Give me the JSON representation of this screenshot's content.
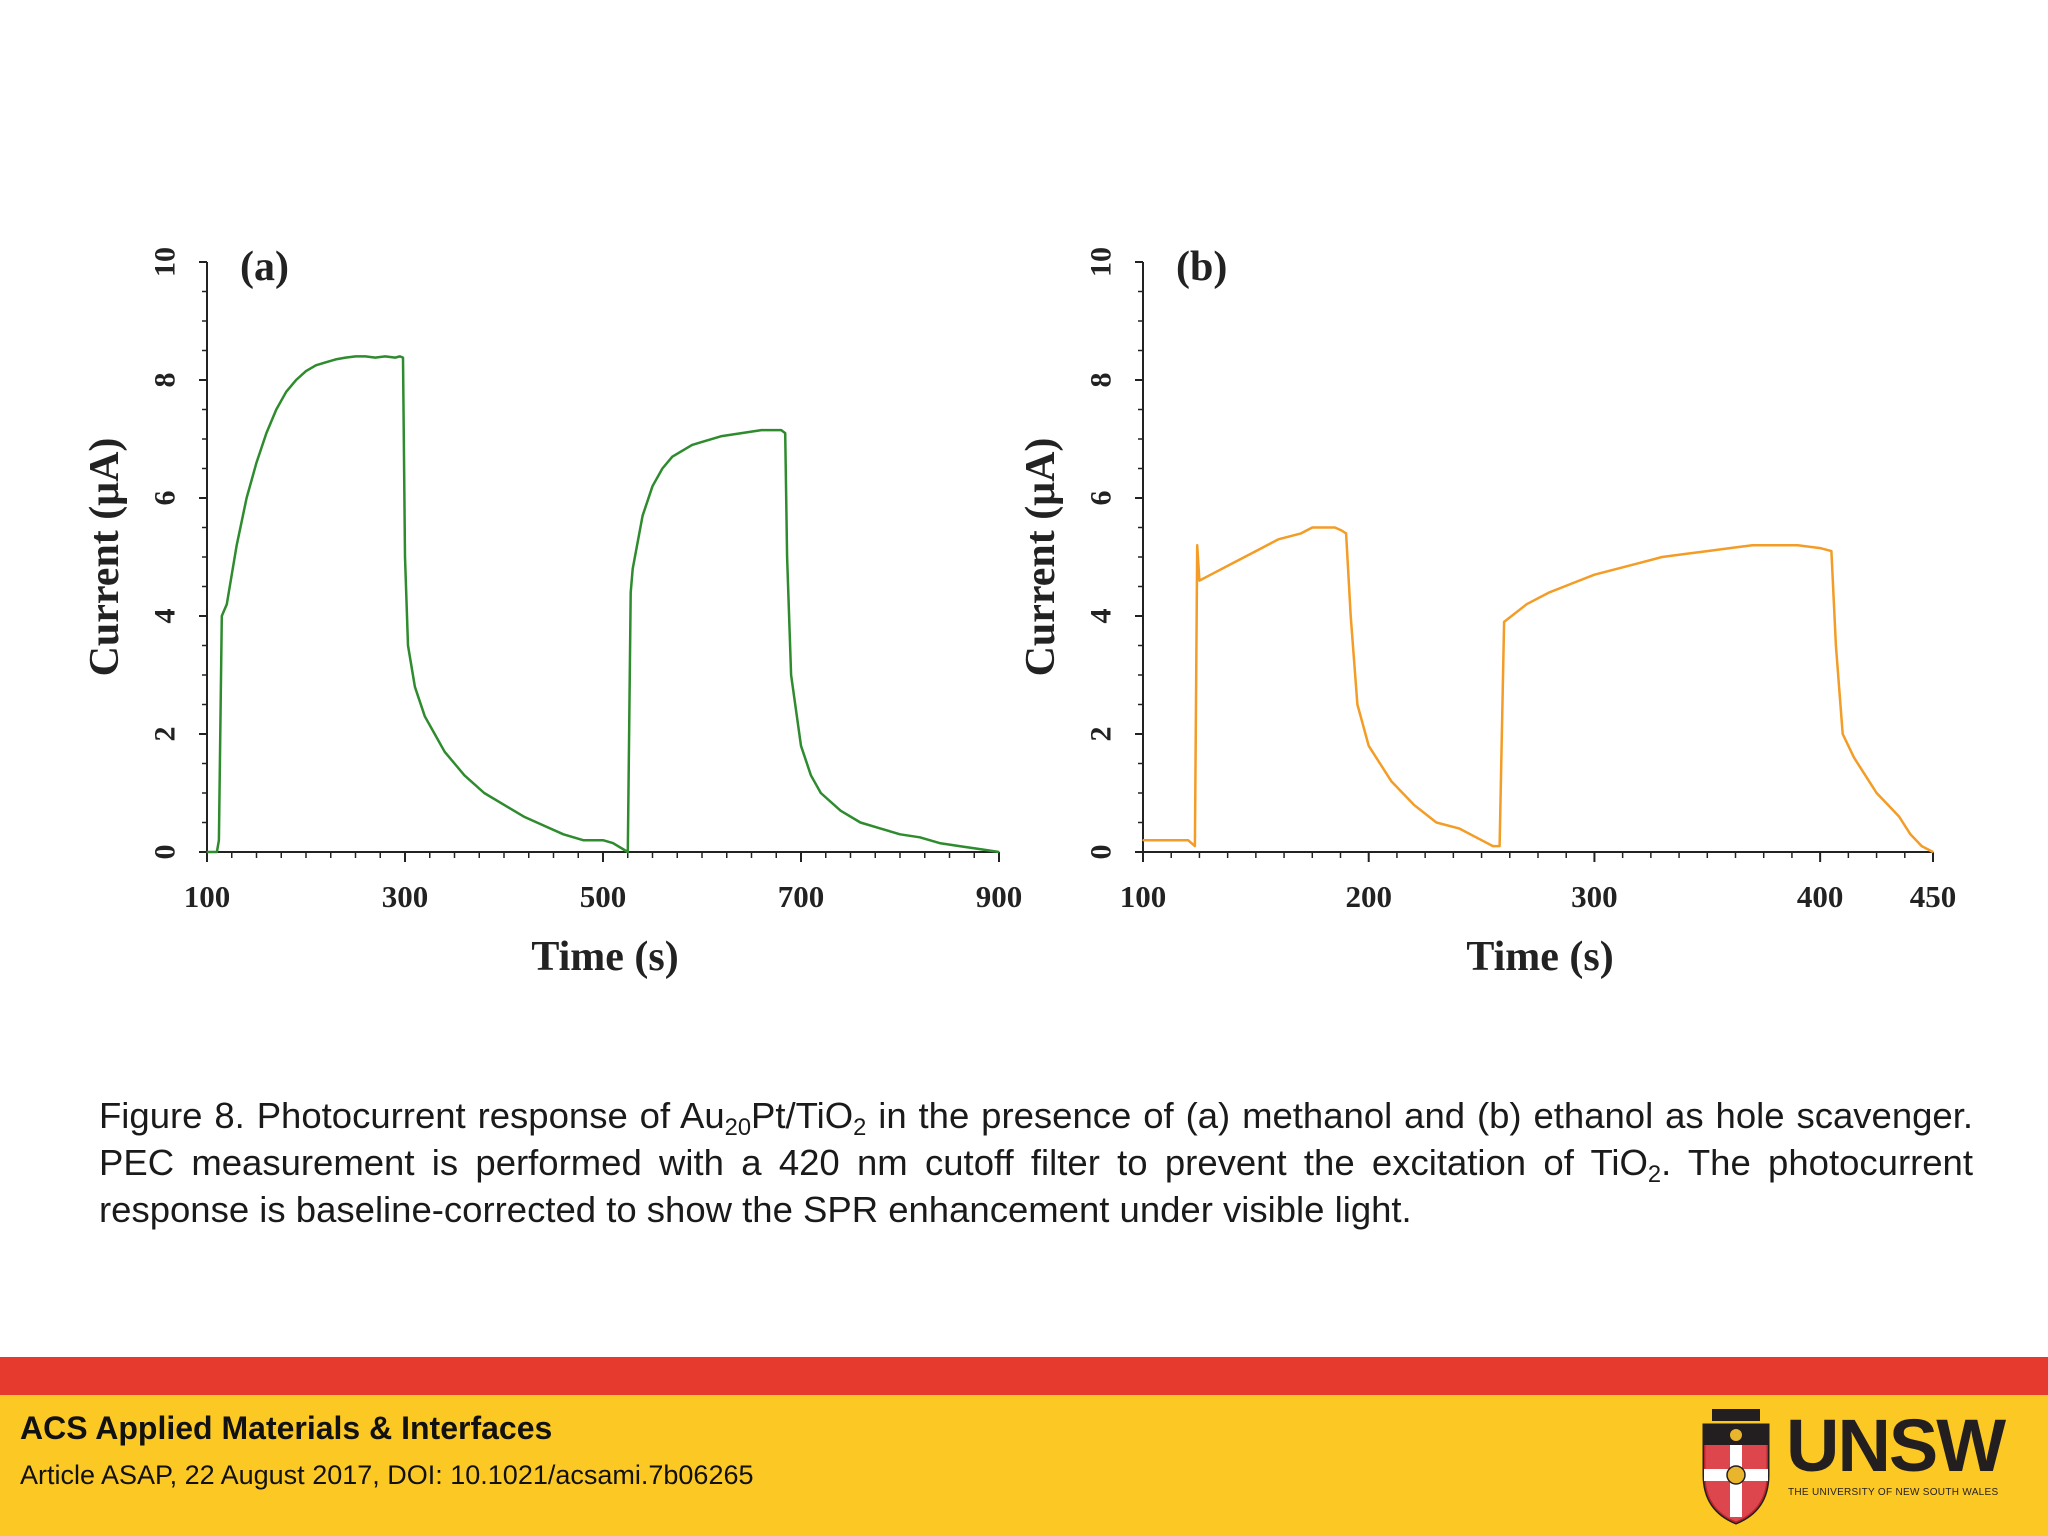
{
  "chart_data": [
    {
      "type": "line",
      "panel_label": "(a)",
      "xlabel": "Time (s)",
      "ylabel": "Current (μA)",
      "xlim": [
        100,
        900
      ],
      "ylim": [
        0,
        10
      ],
      "xticks": [
        "100",
        "300",
        "500",
        "700",
        "900"
      ],
      "yticks": [
        "0",
        "2",
        "4",
        "6",
        "8",
        "10"
      ],
      "color": "#2e8b2e",
      "x": [
        100,
        110,
        112,
        115,
        120,
        130,
        140,
        150,
        160,
        170,
        180,
        190,
        200,
        210,
        220,
        230,
        240,
        250,
        260,
        270,
        280,
        290,
        295,
        298,
        300,
        303,
        310,
        320,
        330,
        340,
        350,
        360,
        380,
        400,
        420,
        440,
        460,
        480,
        500,
        510,
        515,
        520,
        525,
        528,
        530,
        540,
        550,
        560,
        570,
        580,
        590,
        600,
        620,
        640,
        660,
        680,
        684,
        686,
        690,
        700,
        710,
        720,
        740,
        760,
        780,
        800,
        820,
        840,
        860,
        880,
        900
      ],
      "values": [
        0,
        0,
        0.2,
        4.0,
        4.2,
        5.2,
        6.0,
        6.6,
        7.1,
        7.5,
        7.8,
        8.0,
        8.15,
        8.25,
        8.3,
        8.35,
        8.38,
        8.4,
        8.4,
        8.38,
        8.4,
        8.38,
        8.4,
        8.38,
        5.0,
        3.5,
        2.8,
        2.3,
        2.0,
        1.7,
        1.5,
        1.3,
        1.0,
        0.8,
        0.6,
        0.45,
        0.3,
        0.2,
        0.2,
        0.15,
        0.1,
        0.05,
        0,
        4.4,
        4.8,
        5.7,
        6.2,
        6.5,
        6.7,
        6.8,
        6.9,
        6.95,
        7.05,
        7.1,
        7.15,
        7.15,
        7.1,
        5.0,
        3.0,
        1.8,
        1.3,
        1.0,
        0.7,
        0.5,
        0.4,
        0.3,
        0.25,
        0.15,
        0.1,
        0.05,
        0
      ],
      "grid": false
    },
    {
      "type": "line",
      "panel_label": "(b)",
      "xlabel": "Time (s)",
      "ylabel": "Current (μA)",
      "xlim": [
        100,
        450
      ],
      "ylim": [
        0,
        10
      ],
      "xticks": [
        "100",
        "200",
        "300",
        "400",
        "450"
      ],
      "yticks": [
        "0",
        "2",
        "4",
        "6",
        "8",
        "10"
      ],
      "color": "#f39c26",
      "x": [
        100,
        110,
        120,
        123,
        124,
        125,
        130,
        140,
        150,
        160,
        170,
        175,
        180,
        185,
        188,
        190,
        192,
        195,
        200,
        205,
        210,
        220,
        230,
        240,
        250,
        255,
        257,
        258,
        260,
        270,
        280,
        290,
        300,
        310,
        320,
        330,
        340,
        350,
        360,
        370,
        380,
        390,
        400,
        405,
        407,
        410,
        415,
        420,
        425,
        430,
        435,
        440,
        445,
        450
      ],
      "values": [
        0.2,
        0.2,
        0.2,
        0.1,
        5.2,
        4.6,
        4.7,
        4.9,
        5.1,
        5.3,
        5.4,
        5.5,
        5.5,
        5.5,
        5.45,
        5.4,
        4.0,
        2.5,
        1.8,
        1.5,
        1.2,
        0.8,
        0.5,
        0.4,
        0.2,
        0.1,
        0.1,
        0.1,
        3.9,
        4.2,
        4.4,
        4.55,
        4.7,
        4.8,
        4.9,
        5.0,
        5.05,
        5.1,
        5.15,
        5.2,
        5.2,
        5.2,
        5.15,
        5.1,
        3.5,
        2.0,
        1.6,
        1.3,
        1.0,
        0.8,
        0.6,
        0.3,
        0.1,
        0
      ],
      "grid": false
    }
  ],
  "caption": {
    "part1": "Figure 8. Photocurrent response of Au",
    "sub1": "20",
    "part2": "Pt/TiO",
    "sub2": "2",
    "part3": " in the presence of (a) methanol and (b) ethanol as hole scavenger. PEC measurement is performed with a 420 nm cutoff filter to prevent the excitation of TiO",
    "sub3": "2",
    "part4": ". The photocurrent response is baseline-corrected to show the SPR enhancement under visible light."
  },
  "footer": {
    "journal": "ACS Applied Materials & Interfaces",
    "citation": "Article ASAP, 22 August 2017, DOI: 10.1021/acsami.7b06265",
    "logo_text": "UNSW",
    "logo_subtext": "THE UNIVERSITY OF NEW SOUTH WALES",
    "bar_color": "#e63a2e",
    "footer_color": "#fcc824"
  }
}
